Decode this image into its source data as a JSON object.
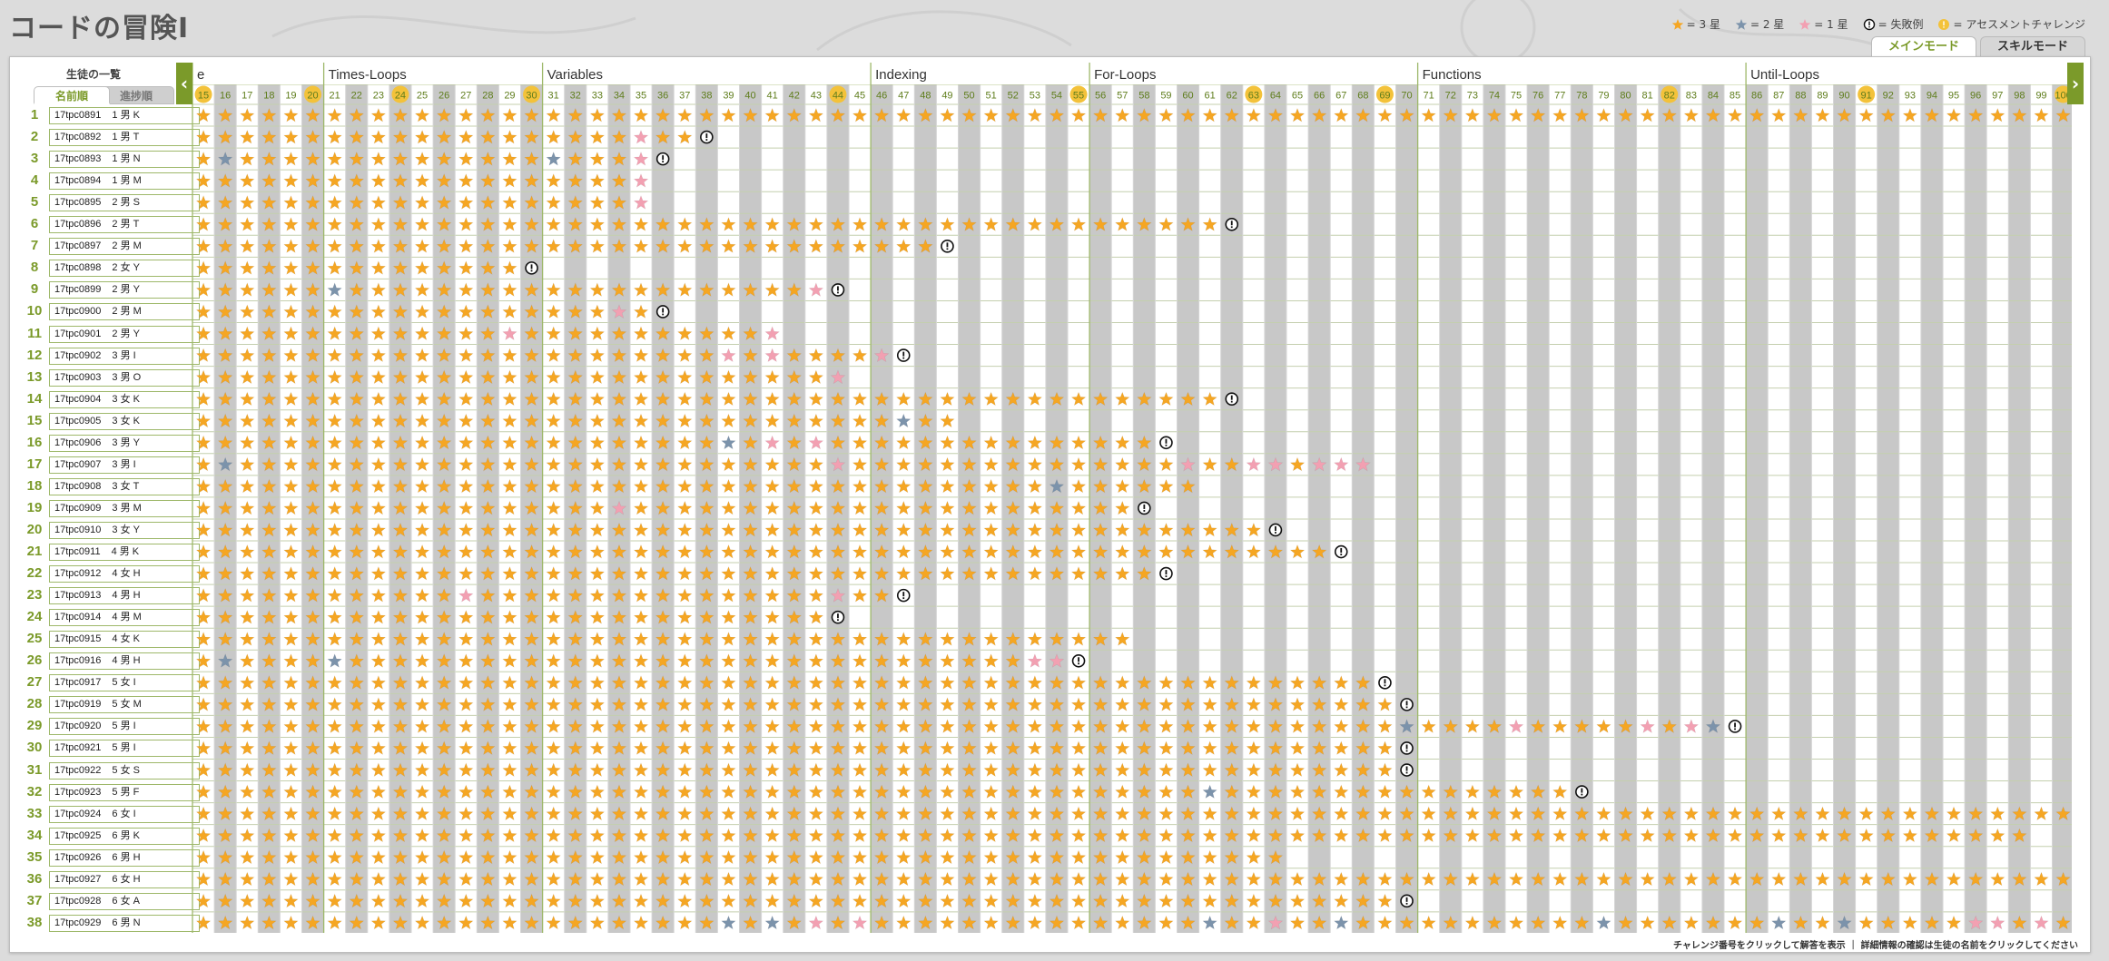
{
  "header": {
    "title": "コードの冒険I"
  },
  "legend": [
    {
      "icon": "star-gold-icon",
      "label": "= 3 星"
    },
    {
      "icon": "star-blue-icon",
      "label": "= 2 星"
    },
    {
      "icon": "star-pink-icon",
      "label": "= 1 星"
    },
    {
      "icon": "fail-icon",
      "label": "= 失敗例"
    },
    {
      "icon": "assessment-icon",
      "label": "= アセスメントチャレンジ"
    }
  ],
  "tabs": [
    {
      "label": "メインモード",
      "active": true
    },
    {
      "label": "スキルモード",
      "active": false
    }
  ],
  "sidebar": {
    "title": "生徒の一覧",
    "sort_name": "名前順",
    "sort_progress": "進捗順"
  },
  "nav": {
    "prev": "‹",
    "next": "›"
  },
  "colors": {
    "accent": "#7b9a2a",
    "gold": "#f5a623",
    "blue": "#7c93ab",
    "pink": "#f2a0b2",
    "stripe": "#c8c8c8",
    "assessment": "#f3c23a"
  },
  "levels": {
    "start": 15,
    "end": 100,
    "assessment": [
      15,
      20,
      24,
      30,
      44,
      55,
      63,
      69,
      82,
      91,
      100
    ]
  },
  "categories": [
    {
      "name": "e",
      "start": 15,
      "end": 20
    },
    {
      "name": "Times-Loops",
      "start": 21,
      "end": 30
    },
    {
      "name": "Variables",
      "start": 31,
      "end": 45
    },
    {
      "name": "Indexing",
      "start": 46,
      "end": 55
    },
    {
      "name": "For-Loops",
      "start": 56,
      "end": 70
    },
    {
      "name": "Functions",
      "start": 71,
      "end": 85
    },
    {
      "name": "Until-Loops",
      "start": 86,
      "end": 100
    }
  ],
  "students": [
    {
      "no": "1",
      "id": "17tpc0891",
      "name": "1 男 K",
      "last": 100,
      "fail": null,
      "b": [],
      "p": []
    },
    {
      "no": "2",
      "id": "17tpc0892",
      "name": "1 男 T",
      "last": 37,
      "fail": 38,
      "b": [],
      "p": [
        35
      ]
    },
    {
      "no": "3",
      "id": "17tpc0893",
      "name": "1 男 N",
      "last": 35,
      "fail": 36,
      "b": [
        16,
        31
      ],
      "p": [
        35
      ]
    },
    {
      "no": "4",
      "id": "17tpc0894",
      "name": "1 男 M",
      "last": 35,
      "fail": null,
      "b": [],
      "p": [
        35
      ]
    },
    {
      "no": "5",
      "id": "17tpc0895",
      "name": "2 男 S",
      "last": 35,
      "fail": null,
      "b": [],
      "p": [
        35
      ]
    },
    {
      "no": "6",
      "id": "17tpc0896",
      "name": "2 男 T",
      "last": 61,
      "fail": 62,
      "b": [],
      "p": []
    },
    {
      "no": "7",
      "id": "17tpc0897",
      "name": "2 男 M",
      "last": 48,
      "fail": 49,
      "b": [],
      "p": []
    },
    {
      "no": "8",
      "id": "17tpc0898",
      "name": "2 女 Y",
      "last": 29,
      "fail": 30,
      "b": [],
      "p": []
    },
    {
      "no": "9",
      "id": "17tpc0899",
      "name": "2 男 Y",
      "last": 43,
      "fail": 44,
      "b": [
        21
      ],
      "p": [
        43
      ]
    },
    {
      "no": "10",
      "id": "17tpc0900",
      "name": "2 男 M",
      "last": 35,
      "fail": 36,
      "b": [],
      "p": [
        34
      ]
    },
    {
      "no": "11",
      "id": "17tpc0901",
      "name": "2 男 Y",
      "last": 41,
      "fail": null,
      "b": [],
      "p": [
        29,
        41
      ]
    },
    {
      "no": "12",
      "id": "17tpc0902",
      "name": "3 男 I",
      "last": 46,
      "fail": 47,
      "b": [],
      "p": [
        39,
        41,
        46
      ]
    },
    {
      "no": "13",
      "id": "17tpc0903",
      "name": "3 男 O",
      "last": 44,
      "fail": null,
      "b": [],
      "p": [
        44
      ]
    },
    {
      "no": "14",
      "id": "17tpc0904",
      "name": "3 女 K",
      "last": 61,
      "fail": 62,
      "b": [],
      "p": []
    },
    {
      "no": "15",
      "id": "17tpc0905",
      "name": "3 女 K",
      "last": 49,
      "fail": null,
      "b": [
        47
      ],
      "p": []
    },
    {
      "no": "16",
      "id": "17tpc0906",
      "name": "3 男 Y",
      "last": 58,
      "fail": 59,
      "b": [
        39
      ],
      "p": [
        41,
        43
      ]
    },
    {
      "no": "17",
      "id": "17tpc0907",
      "name": "3 男 I",
      "last": 68,
      "fail": null,
      "b": [
        16
      ],
      "p": [
        44,
        60,
        63,
        64,
        66,
        67,
        68
      ]
    },
    {
      "no": "18",
      "id": "17tpc0908",
      "name": "3 女 T",
      "last": 60,
      "fail": null,
      "b": [
        54
      ],
      "p": []
    },
    {
      "no": "19",
      "id": "17tpc0909",
      "name": "3 男 M",
      "last": 57,
      "fail": 58,
      "b": [],
      "p": [
        34
      ]
    },
    {
      "no": "20",
      "id": "17tpc0910",
      "name": "3 女 Y",
      "last": 63,
      "fail": 64,
      "b": [],
      "p": []
    },
    {
      "no": "21",
      "id": "17tpc0911",
      "name": "4 男 K",
      "last": 66,
      "fail": 67,
      "b": [],
      "p": []
    },
    {
      "no": "22",
      "id": "17tpc0912",
      "name": "4 女 H",
      "last": 58,
      "fail": 59,
      "b": [],
      "p": []
    },
    {
      "no": "23",
      "id": "17tpc0913",
      "name": "4 男 H",
      "last": 46,
      "fail": 47,
      "b": [],
      "p": [
        27,
        44
      ]
    },
    {
      "no": "24",
      "id": "17tpc0914",
      "name": "4 男 M",
      "last": 43,
      "fail": 44,
      "b": [],
      "p": []
    },
    {
      "no": "25",
      "id": "17tpc0915",
      "name": "4 女 K",
      "last": 57,
      "fail": null,
      "b": [],
      "p": []
    },
    {
      "no": "26",
      "id": "17tpc0916",
      "name": "4 男 H",
      "last": 54,
      "fail": 55,
      "b": [
        16,
        21
      ],
      "p": [
        53,
        54
      ]
    },
    {
      "no": "27",
      "id": "17tpc0917",
      "name": "5 女 I",
      "last": 68,
      "fail": 69,
      "b": [],
      "p": []
    },
    {
      "no": "28",
      "id": "17tpc0919",
      "name": "5 女 M",
      "last": 69,
      "fail": 70,
      "b": [],
      "p": []
    },
    {
      "no": "29",
      "id": "17tpc0920",
      "name": "5 男 I",
      "last": 84,
      "fail": 85,
      "b": [
        70,
        84
      ],
      "p": [
        75,
        81,
        83
      ]
    },
    {
      "no": "30",
      "id": "17tpc0921",
      "name": "5 男 I",
      "last": 69,
      "fail": 70,
      "b": [],
      "p": []
    },
    {
      "no": "31",
      "id": "17tpc0922",
      "name": "5 女 S",
      "last": 69,
      "fail": 70,
      "b": [],
      "p": []
    },
    {
      "no": "32",
      "id": "17tpc0923",
      "name": "5 男 F",
      "last": 77,
      "fail": 78,
      "b": [
        61
      ],
      "p": []
    },
    {
      "no": "33",
      "id": "17tpc0924",
      "name": "6 女 I",
      "last": 100,
      "fail": null,
      "b": [],
      "p": []
    },
    {
      "no": "34",
      "id": "17tpc0925",
      "name": "6 男 K",
      "last": 98,
      "fail": null,
      "b": [],
      "p": []
    },
    {
      "no": "35",
      "id": "17tpc0926",
      "name": "6 男 H",
      "last": 64,
      "fail": null,
      "b": [],
      "p": []
    },
    {
      "no": "36",
      "id": "17tpc0927",
      "name": "6 女 H",
      "last": 100,
      "fail": null,
      "b": [],
      "p": []
    },
    {
      "no": "37",
      "id": "17tpc0928",
      "name": "6 女 A",
      "last": 69,
      "fail": 70,
      "b": [],
      "p": []
    },
    {
      "no": "38",
      "id": "17tpc0929",
      "name": "6 男 N",
      "last": 100,
      "fail": null,
      "b": [
        39,
        41,
        61,
        67,
        79,
        87,
        90
      ],
      "p": [
        43,
        45,
        64,
        96,
        97,
        99
      ]
    }
  ],
  "footer": "チャレンジ番号をクリックして解答を表示 ｜ 詳細情報の確認は生徒の名前をクリックしてください"
}
